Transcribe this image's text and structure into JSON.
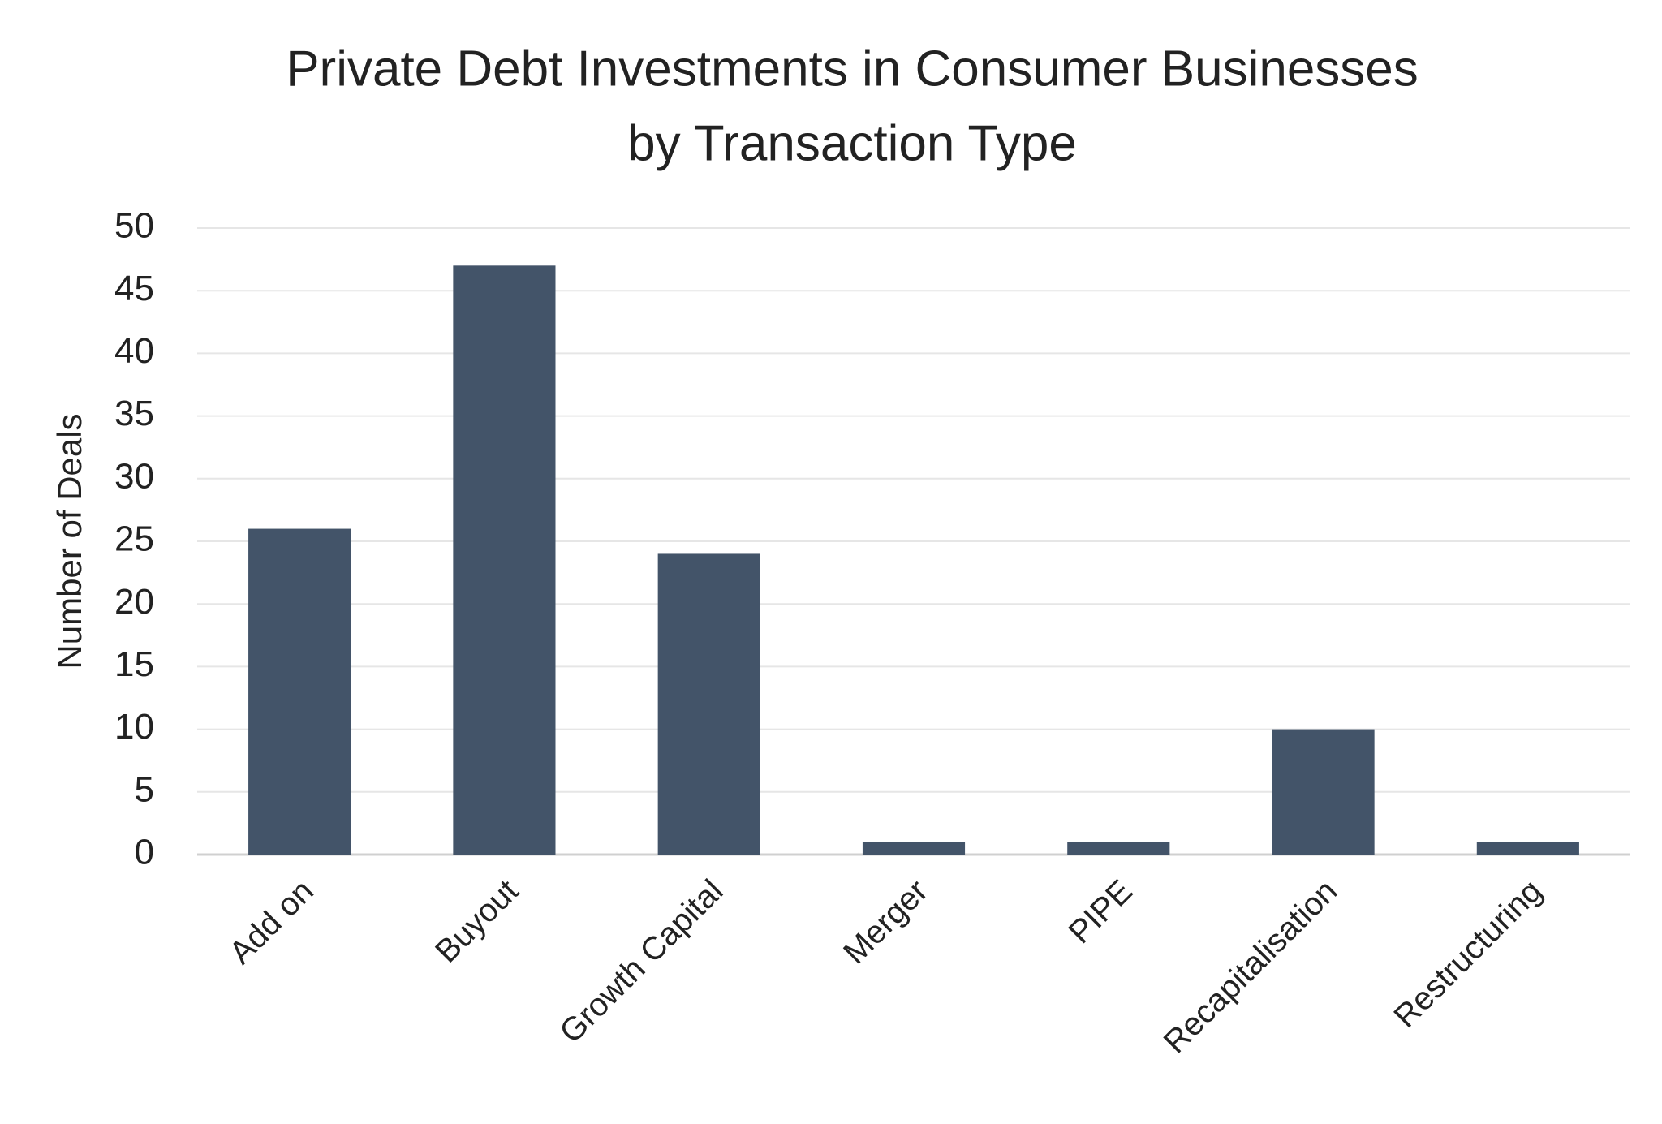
{
  "chart_data": {
    "type": "bar",
    "title": [
      "Private Debt Investments in Consumer Businesses",
      "by Transaction Type"
    ],
    "y_label": "Number of Deals",
    "categories": [
      "Add on",
      "Buyout",
      "Growth Capital",
      "Merger",
      "PIPE",
      "Recapitalisation",
      "Restructuring"
    ],
    "values": [
      26,
      47,
      24,
      1,
      1,
      10,
      1
    ],
    "color": "#435469",
    "ylim": [
      0,
      50
    ],
    "yticks": [
      0,
      5,
      10,
      15,
      20,
      25,
      30,
      35,
      40,
      45,
      50
    ],
    "grid": true
  }
}
